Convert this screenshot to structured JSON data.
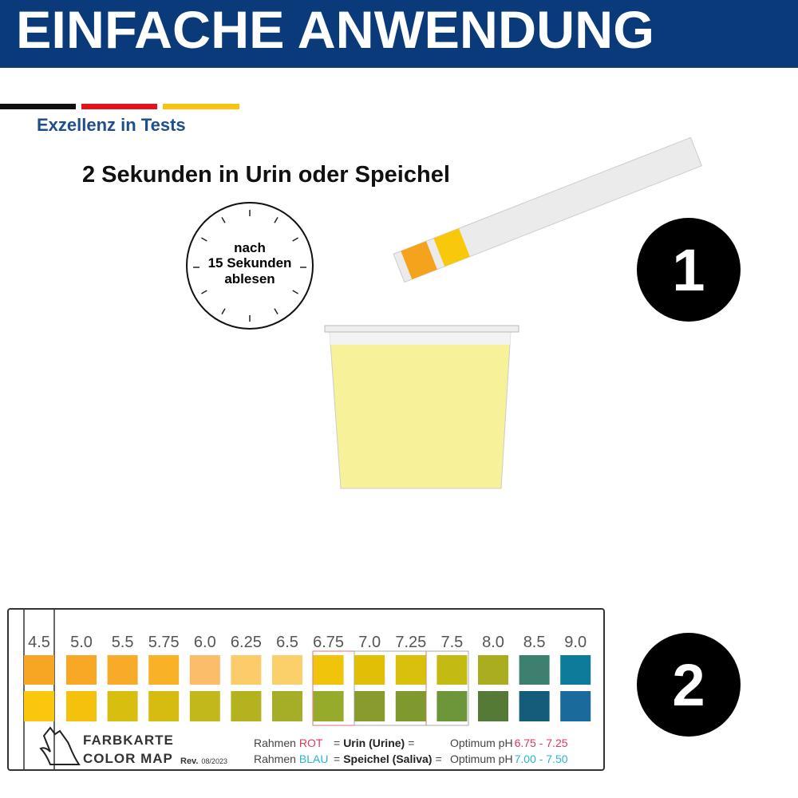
{
  "header": {
    "title": "EINFACHE ANWENDUNG"
  },
  "brand": {
    "tagline": "Exzellenz in Tests"
  },
  "step1": {
    "number": "1",
    "instruction": "2 Sekunden in Urin oder Speichel",
    "clock_text": [
      "nach",
      "15 Sekunden",
      "ablesen"
    ]
  },
  "step2": {
    "number": "2"
  },
  "color_map": {
    "ph_values": [
      "4.5",
      "5.0",
      "5.5",
      "5.75",
      "6.0",
      "6.25",
      "6.5",
      "6.75",
      "7.0",
      "7.25",
      "7.5",
      "8.0",
      "8.5",
      "9.0"
    ],
    "top_colors": [
      "#f5a623",
      "#f9a825",
      "#f7ab28",
      "#f9b128",
      "#fbbd6a",
      "#fccb6a",
      "#fbd06b",
      "#efc40a",
      "#e2bf07",
      "#d9c00a",
      "#c4bb12",
      "#a9ad1f",
      "#3d8070",
      "#0f7b9a"
    ],
    "bottom_colors": [
      "#f9c80e",
      "#f4c20d",
      "#d8be0e",
      "#d6bb10",
      "#c2b81c",
      "#b4b31f",
      "#a6ae27",
      "#97ab2a",
      "#899a2f",
      "#80992f",
      "#6d963a",
      "#557a35",
      "#155b7a",
      "#1a6a9c"
    ],
    "title": [
      "FARBKARTE",
      "COLOR MAP"
    ],
    "revision": {
      "prefix": "Rev.",
      "date": "08/2023"
    },
    "legend": [
      {
        "frame": "Rahmen",
        "color_word": "ROT",
        "eq1": "=",
        "medium": "Urin (Urine)",
        "eq2": "=",
        "optimum": "Optimum pH",
        "range": "6.75 - 7.25"
      },
      {
        "frame": "Rahmen",
        "color_word": "BLAU",
        "eq1": "=",
        "medium": "Speichel (Saliva)",
        "eq2": "=",
        "optimum": "Optimum pH",
        "range": "7.00 - 7.50"
      }
    ]
  }
}
